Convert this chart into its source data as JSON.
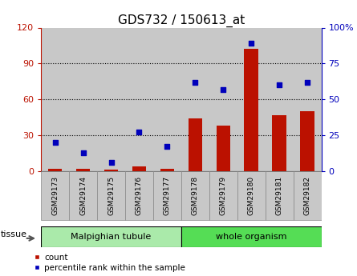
{
  "title": "GDS732 / 150613_at",
  "samples": [
    "GSM29173",
    "GSM29174",
    "GSM29175",
    "GSM29176",
    "GSM29177",
    "GSM29178",
    "GSM29179",
    "GSM29180",
    "GSM29181",
    "GSM29182"
  ],
  "counts": [
    2,
    2,
    1,
    4,
    2,
    44,
    38,
    102,
    47,
    50
  ],
  "percentiles": [
    20,
    13,
    6,
    27,
    17,
    62,
    57,
    89,
    60,
    62
  ],
  "groups": [
    {
      "label": "Malpighian tubule",
      "start": 0,
      "end": 5
    },
    {
      "label": "whole organism",
      "start": 5,
      "end": 10
    }
  ],
  "ylim_left": [
    0,
    120
  ],
  "ylim_right": [
    0,
    100
  ],
  "yticks_left": [
    0,
    30,
    60,
    90,
    120
  ],
  "yticks_right": [
    0,
    25,
    50,
    75,
    100
  ],
  "bar_color": "#bb1100",
  "dot_color": "#0000bb",
  "col_bg_color": "#c8c8c8",
  "group_bg_malpighian": "#aaeaaa",
  "group_bg_whole": "#55dd55",
  "tissue_label": "tissue",
  "legend_count": "count",
  "legend_percentile": "percentile rank within the sample",
  "title_fontsize": 11,
  "tick_fontsize": 8,
  "bar_width": 0.5
}
